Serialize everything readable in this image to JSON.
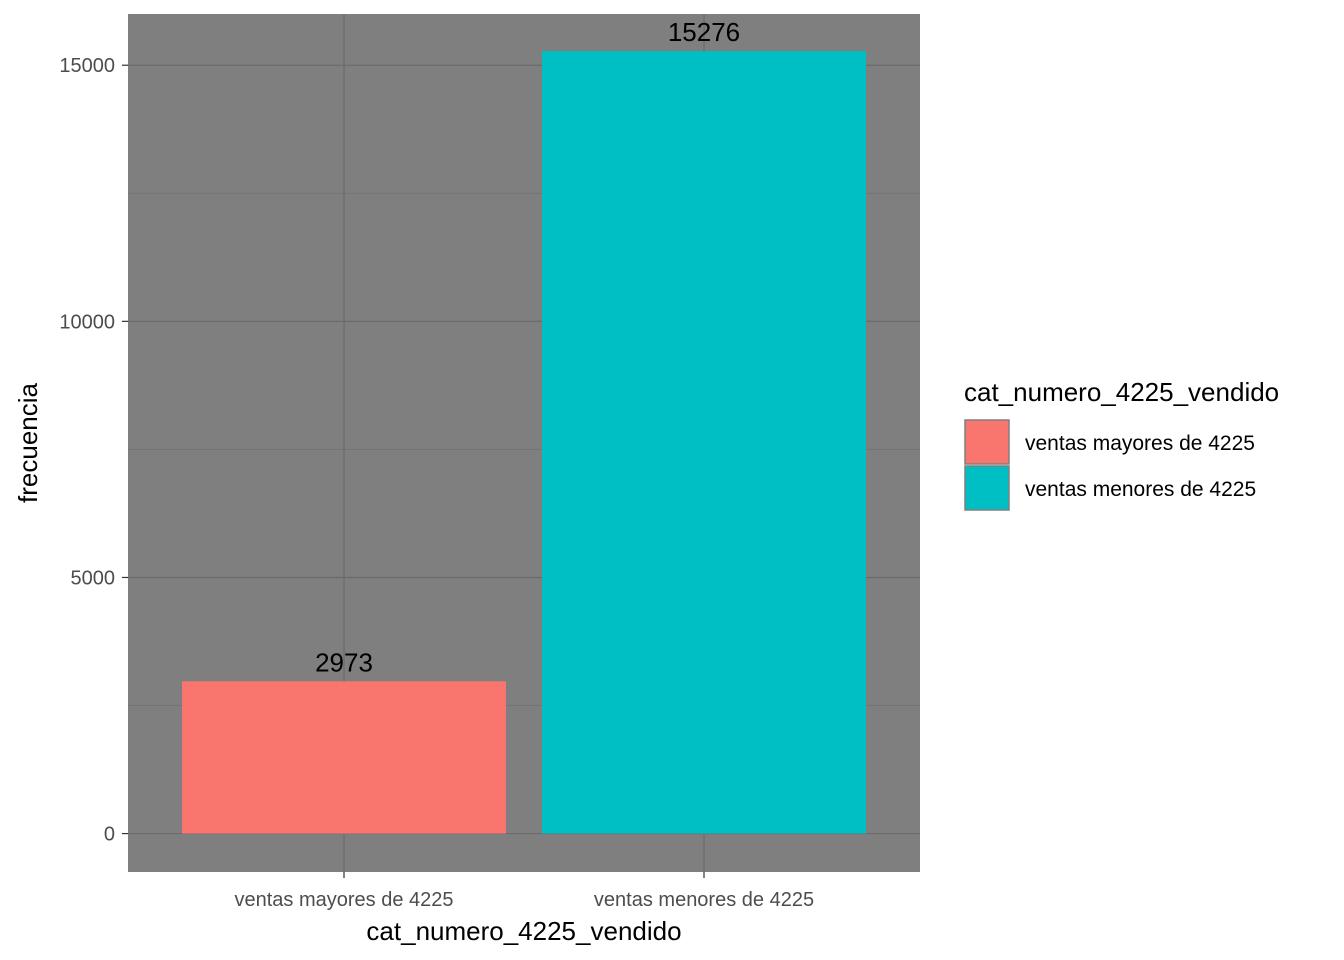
{
  "colors": {
    "panel_background": "#7f7f7f",
    "grid_major": "#6b6b6b",
    "grid_minor": "#737373",
    "series": [
      "#F8766D",
      "#00BFC4"
    ]
  },
  "chart_data": {
    "type": "bar",
    "categories": [
      "ventas mayores de 4225",
      "ventas menores de 4225"
    ],
    "values": [
      2973,
      15276
    ],
    "data_labels": [
      "2973",
      "15276"
    ],
    "xlabel": "cat_numero_4225_vendido",
    "ylabel": "frecuencia",
    "ylim": [
      -750,
      16000
    ],
    "yticks": [
      0,
      5000,
      10000,
      15000
    ],
    "ytick_labels": [
      "0",
      "5000",
      "10000",
      "15000"
    ],
    "grid": true,
    "legend": {
      "title": "cat_numero_4225_vendido",
      "position": "right",
      "entries": [
        "ventas mayores de 4225",
        "ventas menores de 4225"
      ]
    }
  }
}
